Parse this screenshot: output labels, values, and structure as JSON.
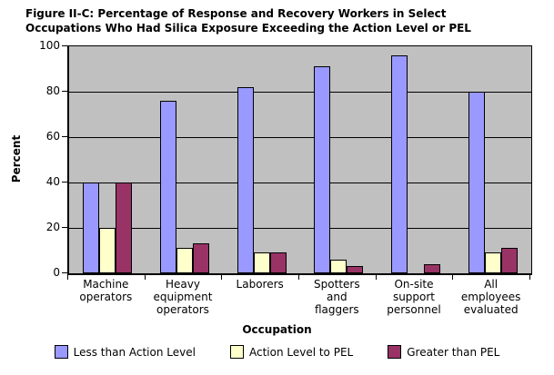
{
  "title": "Figure II-C: Percentage of Response and Recovery Workers in Select\nOccupations Who Had Silica Exposure Exceeding the Action Level or PEL",
  "chart_data": {
    "type": "bar",
    "title": "Figure II-C: Percentage of Response and Recovery Workers in Select Occupations Who Had Silica Exposure Exceeding the Action Level or PEL",
    "xlabel": "Occupation",
    "ylabel": "Percent",
    "ylim": [
      0,
      100
    ],
    "yticks": [
      0,
      20,
      40,
      60,
      80,
      100
    ],
    "grid": true,
    "plot_background": "#c0c0c0",
    "legend_position": "bottom",
    "categories": [
      "Machine\noperators",
      "Heavy\nequipment\noperators",
      "Laborers",
      "Spotters\nand\nflaggers",
      "On-site\nsupport\npersonnel",
      "All\nemployees\nevaluated"
    ],
    "series": [
      {
        "name": "Less than Action Level",
        "color": "#9999ff",
        "values": [
          40,
          76,
          82,
          91,
          96,
          80
        ]
      },
      {
        "name": "Action Level to PEL",
        "color": "#ffffcc",
        "values": [
          20,
          11,
          9,
          6,
          0,
          9
        ]
      },
      {
        "name": "Greater than PEL",
        "color": "#993366",
        "values": [
          40,
          13,
          9,
          3,
          4,
          11
        ]
      }
    ]
  }
}
